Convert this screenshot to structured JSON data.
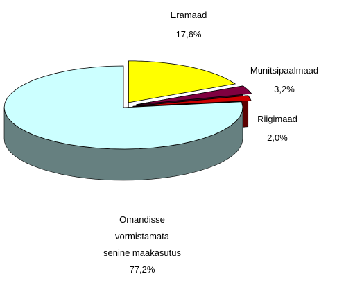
{
  "chart_data": {
    "type": "pie3d",
    "categories": [
      "Eramaad",
      "Munitsipaalmaad",
      "Riigimaad",
      "Omandisse\nvormistamata\nsenine maakasutus"
    ],
    "values": [
      17.6,
      3.2,
      2.0,
      77.2
    ],
    "value_labels": [
      "17,6%",
      "3,2%",
      "2,0%",
      "77,2%"
    ],
    "colors": [
      "#ffff00",
      "#800040",
      "#cc0000",
      "#ccffff"
    ]
  }
}
